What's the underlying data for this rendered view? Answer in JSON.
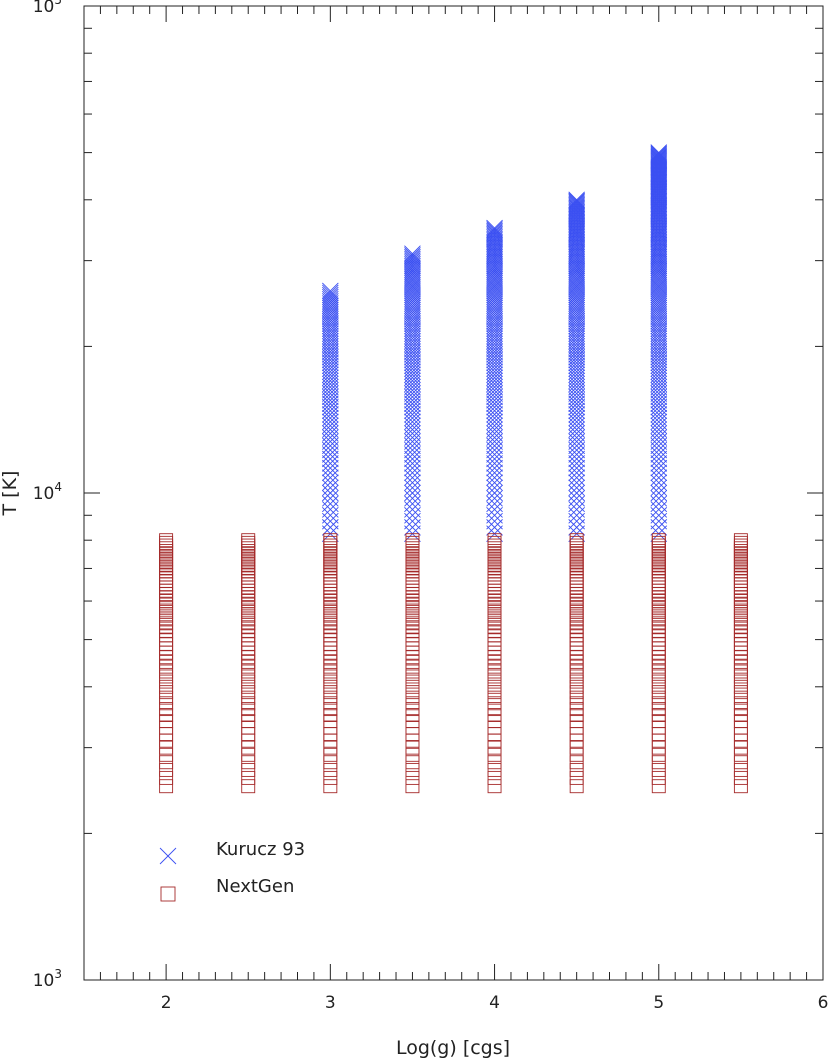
{
  "chart_data": {
    "type": "scatter",
    "xlabel": "Log(g) [cgs]",
    "ylabel": "T [K]",
    "xlim": [
      1.5,
      6.0
    ],
    "ylim": [
      1000,
      100000
    ],
    "yscale": "log",
    "xticks": [
      "2",
      "3",
      "4",
      "5",
      "6"
    ],
    "yticks": [
      {
        "base": "10",
        "exp": "3",
        "value": 1000
      },
      {
        "base": "10",
        "exp": "4",
        "value": 10000
      },
      {
        "base": "10",
        "exp": "5",
        "value": 100000
      }
    ],
    "grid": false,
    "legend_position": "bottom-left",
    "series": [
      {
        "name": "Kurucz 93",
        "marker": "x",
        "color": "#3a4ff2",
        "columns": [
          {
            "logg": 3.0,
            "teff_min": 8250,
            "teff_max": 26000,
            "step": 250
          },
          {
            "logg": 3.5,
            "teff_min": 8250,
            "teff_max": 31000,
            "step": 250
          },
          {
            "logg": 4.0,
            "teff_min": 8250,
            "teff_max": 35000,
            "step": 250
          },
          {
            "logg": 4.5,
            "teff_min": 8250,
            "teff_max": 40000,
            "step": 250
          },
          {
            "logg": 5.0,
            "teff_min": 8250,
            "teff_max": 50000,
            "step": 250
          }
        ]
      },
      {
        "name": "NextGen",
        "marker": "square",
        "color": "#a52a2a",
        "columns": [
          {
            "logg": 2.0,
            "teff_min": 2500,
            "teff_max": 8000,
            "step": 100
          },
          {
            "logg": 2.5,
            "teff_min": 2500,
            "teff_max": 8000,
            "step": 100
          },
          {
            "logg": 3.0,
            "teff_min": 2500,
            "teff_max": 8000,
            "step": 100
          },
          {
            "logg": 3.5,
            "teff_min": 2500,
            "teff_max": 8000,
            "step": 100
          },
          {
            "logg": 4.0,
            "teff_min": 2500,
            "teff_max": 8000,
            "step": 100
          },
          {
            "logg": 4.5,
            "teff_min": 2500,
            "teff_max": 8000,
            "step": 100
          },
          {
            "logg": 5.0,
            "teff_min": 2500,
            "teff_max": 8000,
            "step": 100
          },
          {
            "logg": 5.5,
            "teff_min": 2500,
            "teff_max": 8000,
            "step": 100
          }
        ]
      }
    ]
  }
}
